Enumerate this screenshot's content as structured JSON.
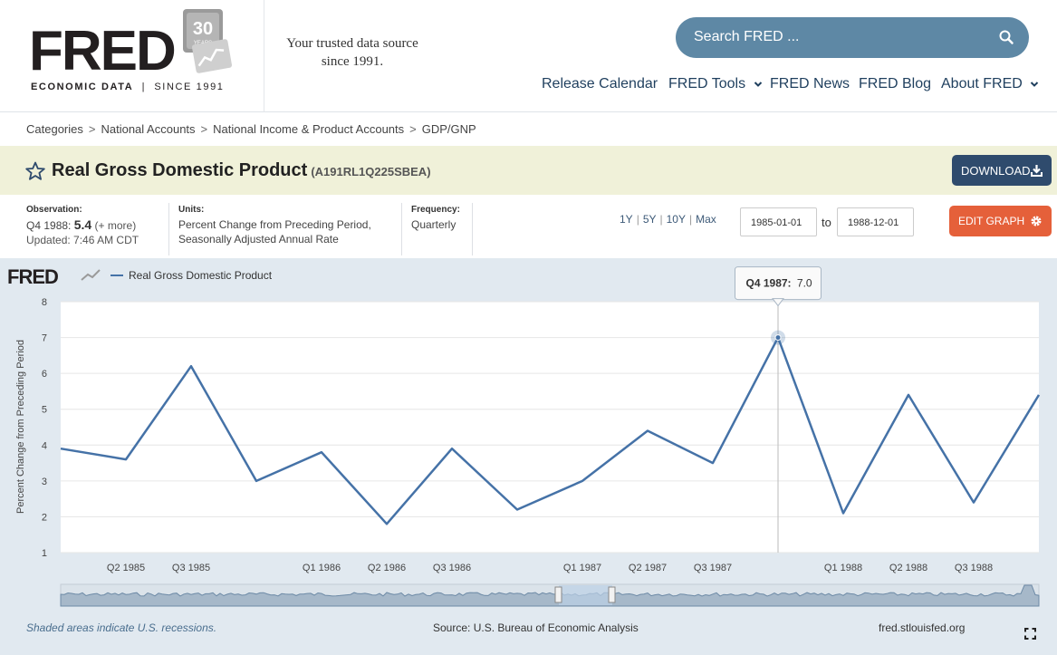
{
  "header": {
    "logo_text": "FRED",
    "logo_badge": "30",
    "logo_badge_sub": "YEARS",
    "logo_sub_left": "ECONOMIC DATA",
    "logo_sub_right": "SINCE 1991",
    "tagline_line1": "Your trusted data source",
    "tagline_line2": "since 1991.",
    "search_placeholder": "Search FRED ...",
    "nav": [
      "Release Calendar",
      "FRED Tools",
      "FRED News",
      "FRED Blog",
      "About FRED"
    ]
  },
  "breadcrumb": [
    "Categories",
    "National Accounts",
    "National Income & Product Accounts",
    "GDP/GNP"
  ],
  "series": {
    "title": "Real Gross Domestic Product",
    "code": "(A191RL1Q225SBEA)",
    "download_label": "DOWNLOAD",
    "edit_label": "EDIT GRAPH"
  },
  "meta": {
    "observation_label": "Observation:",
    "observation_period": "Q4 1988:",
    "observation_value": "5.4",
    "observation_more": "(+ more)",
    "updated": "Updated: 7:46 AM CDT",
    "units_label": "Units:",
    "units_line1": "Percent Change from Preceding Period,",
    "units_line2": "Seasonally Adjusted Annual Rate",
    "frequency_label": "Frequency:",
    "frequency_value": "Quarterly",
    "ranges": [
      "1Y",
      "5Y",
      "10Y",
      "Max"
    ],
    "date_from": "1985-01-01",
    "to_label": "to",
    "date_to": "1988-12-01"
  },
  "chart_data": {
    "type": "line",
    "brand": "FRED",
    "legend": "Real Gross Domestic Product",
    "ylabel": "Percent Change from Preceding Period",
    "ylim": [
      1,
      8
    ],
    "yticks": [
      1,
      2,
      3,
      4,
      5,
      6,
      7,
      8
    ],
    "xtick_labels": [
      "Q2 1985",
      "Q3 1985",
      "Q1 1986",
      "Q2 1986",
      "Q3 1986",
      "Q1 1987",
      "Q2 1987",
      "Q3 1987",
      "Q1 1988",
      "Q2 1988",
      "Q3 1988"
    ],
    "series": [
      {
        "name": "Real Gross Domestic Product",
        "color": "#4572a7",
        "x": [
          "1985-01-01",
          "1985-04-01",
          "1985-07-01",
          "1985-10-01",
          "1986-01-01",
          "1986-04-01",
          "1986-07-01",
          "1986-10-01",
          "1987-01-01",
          "1987-04-01",
          "1987-07-01",
          "1987-10-01",
          "1988-01-01",
          "1988-04-01",
          "1988-07-01",
          "1988-10-01"
        ],
        "values": [
          3.9,
          3.6,
          6.2,
          3.0,
          3.8,
          1.8,
          3.9,
          2.2,
          3.0,
          4.4,
          3.5,
          7.0,
          2.1,
          5.4,
          2.4,
          5.4
        ]
      }
    ],
    "tooltip_label": "Q4 1987:",
    "tooltip_value": "7.0",
    "grid": true
  },
  "footer": {
    "recession_note": "Shaded areas indicate U.S. recessions.",
    "source": "Source: U.S. Bureau of Economic Analysis",
    "site": "fred.stlouisfed.org"
  },
  "colors": {
    "search_bg": "#5e88a5",
    "download_bg": "#2f4b6d",
    "edit_bg": "#e5603a",
    "title_band": "#f0f1d9",
    "chart_bg": "#e1e9f0",
    "line": "#4572a7"
  }
}
